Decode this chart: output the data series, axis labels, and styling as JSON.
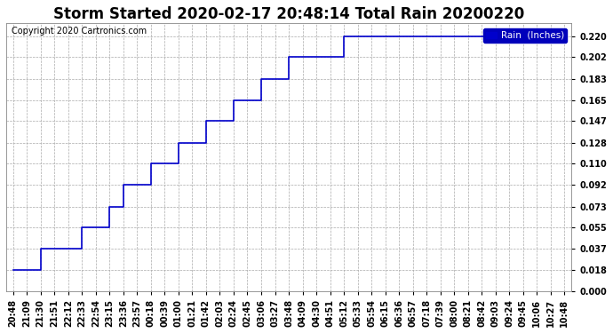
{
  "title": "Storm Started 2020-02-17 20:48:14 Total Rain 20200220",
  "copyright_text": "Copyright 2020 Cartronics.com",
  "legend_label": "Rain  (Inches)",
  "background_color": "#ffffff",
  "plot_background": "#ffffff",
  "line_color": "#0000cc",
  "grid_color": "#aaaaaa",
  "yticks": [
    0.0,
    0.018,
    0.037,
    0.055,
    0.073,
    0.092,
    0.11,
    0.128,
    0.147,
    0.165,
    0.183,
    0.202,
    0.22
  ],
  "xtick_labels": [
    "20:48",
    "21:09",
    "21:30",
    "21:51",
    "22:12",
    "22:33",
    "22:54",
    "23:15",
    "23:36",
    "23:57",
    "00:18",
    "00:39",
    "01:00",
    "01:21",
    "01:42",
    "02:03",
    "02:24",
    "02:45",
    "03:06",
    "03:27",
    "03:48",
    "04:09",
    "04:30",
    "04:51",
    "05:12",
    "05:33",
    "05:54",
    "06:15",
    "06:36",
    "06:57",
    "07:18",
    "07:39",
    "08:00",
    "08:21",
    "08:42",
    "09:03",
    "09:24",
    "09:45",
    "10:06",
    "10:27",
    "10:48"
  ],
  "x_values": [
    0,
    1,
    2,
    3,
    4,
    5,
    6,
    7,
    8,
    9,
    10,
    11,
    12,
    13,
    14,
    15,
    16,
    17,
    18,
    19,
    20,
    21,
    22,
    23,
    24,
    25,
    26,
    27,
    28,
    29,
    30,
    31,
    32,
    33,
    34,
    35,
    36,
    37,
    38,
    39,
    40
  ],
  "y_values": [
    0.018,
    0.018,
    0.037,
    0.037,
    0.037,
    0.055,
    0.055,
    0.073,
    0.092,
    0.092,
    0.11,
    0.11,
    0.128,
    0.128,
    0.147,
    0.147,
    0.165,
    0.165,
    0.183,
    0.183,
    0.202,
    0.202,
    0.202,
    0.202,
    0.22,
    0.22,
    0.22,
    0.22,
    0.22,
    0.22,
    0.22,
    0.22,
    0.22,
    0.22,
    0.22,
    0.22,
    0.22,
    0.22,
    0.22,
    0.22,
    0.22
  ],
  "ylim": [
    0.0,
    0.231
  ],
  "xlim": [
    -0.5,
    40.5
  ],
  "title_fontsize": 12,
  "tick_fontsize": 7,
  "legend_fontsize": 7.5,
  "copyright_fontsize": 7
}
